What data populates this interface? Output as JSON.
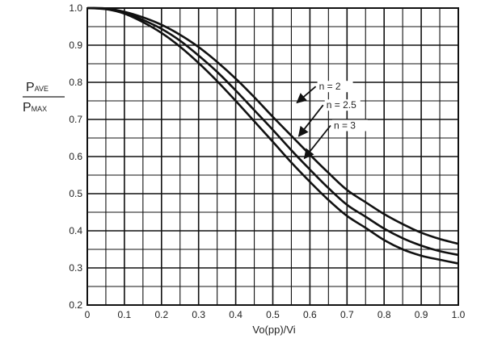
{
  "chart_data": {
    "type": "line",
    "title": "",
    "xlabel": "Vo(pp)/Vi",
    "ylabel": {
      "numerator_main": "P",
      "numerator_sub": "AVE",
      "denominator_main": "P",
      "denominator_sub": "MAX"
    },
    "xlim": [
      0,
      1.0
    ],
    "ylim": [
      0.2,
      1.0
    ],
    "x_tick_labels": [
      "0",
      "0.1",
      "0.2",
      "0.3",
      "0.4",
      "0.5",
      "0.6",
      "0.7",
      "0.8",
      "0.9",
      "1.0"
    ],
    "y_tick_labels": [
      "0.2",
      "0.3",
      "0.4",
      "0.5",
      "0.6",
      "0.7",
      "0.8",
      "0.9",
      "1.0"
    ],
    "x_tick_values": [
      0,
      0.1,
      0.2,
      0.3,
      0.4,
      0.5,
      0.6,
      0.7,
      0.8,
      0.9,
      1.0
    ],
    "y_tick_values": [
      0.2,
      0.3,
      0.4,
      0.5,
      0.6,
      0.7,
      0.8,
      0.9,
      1.0
    ],
    "grid": true,
    "minor_divisions_per_major": 2,
    "x": [
      0,
      0.05,
      0.1,
      0.15,
      0.2,
      0.25,
      0.3,
      0.35,
      0.4,
      0.45,
      0.5,
      0.55,
      0.6,
      0.65,
      0.7,
      0.75,
      0.8,
      0.85,
      0.9,
      0.95,
      1.0
    ],
    "series": [
      {
        "name": "n = 2",
        "values": [
          1.0,
          0.999,
          0.99,
          0.975,
          0.955,
          0.928,
          0.895,
          0.855,
          0.81,
          0.76,
          0.707,
          0.656,
          0.605,
          0.556,
          0.51,
          0.477,
          0.445,
          0.418,
          0.395,
          0.378,
          0.365
        ],
        "label_text": "n = 2",
        "label_at": [
          0.62,
          0.78
        ],
        "arrow_to": [
          0.565,
          0.745
        ]
      },
      {
        "name": "n = 2.5",
        "values": [
          1.0,
          0.998,
          0.988,
          0.968,
          0.944,
          0.912,
          0.872,
          0.828,
          0.778,
          0.725,
          0.672,
          0.617,
          0.565,
          0.515,
          0.47,
          0.438,
          0.406,
          0.38,
          0.36,
          0.345,
          0.335
        ],
        "label_text": "n = 2.5",
        "label_at": [
          0.64,
          0.73
        ],
        "arrow_to": [
          0.57,
          0.655
        ]
      },
      {
        "name": "n = 3",
        "values": [
          1.0,
          0.997,
          0.985,
          0.962,
          0.933,
          0.896,
          0.852,
          0.803,
          0.75,
          0.695,
          0.64,
          0.584,
          0.532,
          0.483,
          0.44,
          0.408,
          0.375,
          0.35,
          0.333,
          0.322,
          0.312
        ],
        "label_text": "n = 3",
        "label_at": [
          0.66,
          0.675
        ],
        "arrow_to": [
          0.585,
          0.595
        ]
      }
    ]
  }
}
